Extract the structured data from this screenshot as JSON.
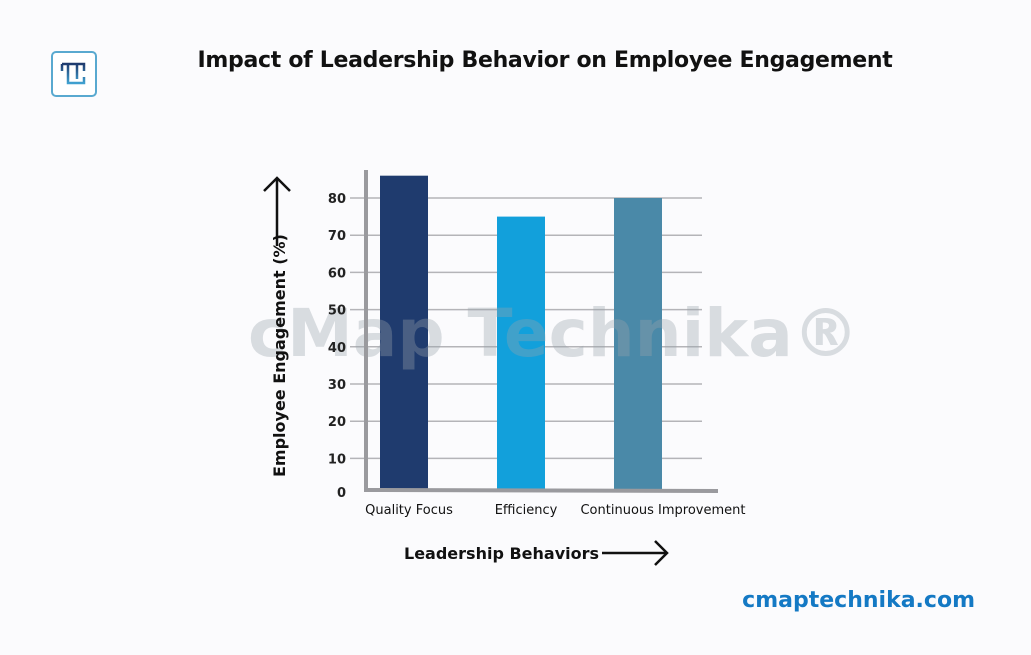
{
  "brand": {
    "site": "cmaptechnika.com",
    "watermark": "cMap Technika®",
    "logo_letter": "T",
    "logo_color": "#59a9d0"
  },
  "chart_data": {
    "type": "bar",
    "title": "Impact of Leadership Behavior on Employee Engagement",
    "xlabel": "Leadership Behaviors",
    "ylabel": "Employee Engagement (%)",
    "categories": [
      "Quality Focus",
      "Efficiency",
      "Continuous Improvement"
    ],
    "values": [
      86,
      75,
      80
    ],
    "colors": [
      "#1f3b6e",
      "#12a0db",
      "#4a89a8"
    ],
    "yticks": [
      0,
      10,
      20,
      30,
      40,
      50,
      60,
      70,
      80
    ],
    "ylim": [
      0,
      86
    ],
    "grid": true,
    "legend": "none"
  }
}
